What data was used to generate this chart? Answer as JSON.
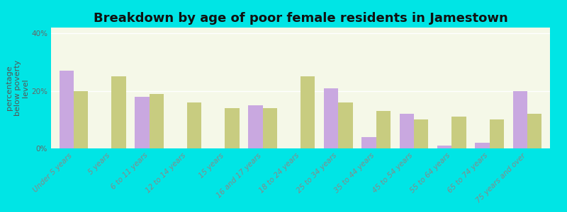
{
  "title": "Breakdown by age of poor female residents in Jamestown",
  "ylabel": "percentage\nbelow poverty\nlevel",
  "background_outer": "#00e5e5",
  "background_inner_top": "#f5f8e8",
  "background_inner_bottom": "#e8f0d0",
  "categories": [
    "Under 5 years",
    "5 years",
    "6 to 11 years",
    "12 to 14 years",
    "15 years",
    "16 and 17 years",
    "18 to 24 years",
    "25 to 34 years",
    "35 to 44 years",
    "45 to 54 years",
    "55 to 64 years",
    "65 to 74 years",
    "75 years and over"
  ],
  "jamestown": [
    27,
    0,
    18,
    0,
    0,
    15,
    0,
    21,
    4,
    12,
    1,
    2,
    20
  ],
  "ohio": [
    20,
    25,
    19,
    16,
    14,
    14,
    25,
    16,
    13,
    10,
    11,
    10,
    12
  ],
  "jamestown_color": "#c9a8e0",
  "ohio_color": "#c8cc80",
  "ylim": [
    0,
    42
  ],
  "yticks": [
    0,
    20,
    40
  ],
  "ytick_labels": [
    "0%",
    "20%",
    "40%"
  ],
  "bar_width": 0.38,
  "title_fontsize": 13,
  "axis_fontsize": 8,
  "tick_fontsize": 7.5,
  "legend_fontsize": 9
}
